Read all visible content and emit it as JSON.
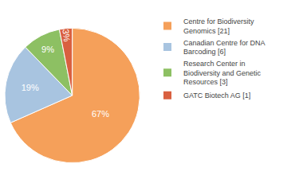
{
  "chart_data": {
    "type": "pie",
    "categories": [
      "Centre for Biodiversity\nGenomics [21]",
      "Canadian Centre for DNA\nBarcoding [6]",
      "Research Center in\nBiodiversity and Genetic\nResources [3]",
      "GATC Biotech AG [1]"
    ],
    "values": [
      67,
      19,
      9,
      3
    ],
    "value_labels": [
      "67%",
      "19%",
      "9%",
      "3%"
    ],
    "colors": [
      "#F5A05A",
      "#A8C4E0",
      "#8DC063",
      "#D96040"
    ],
    "data_labels": true,
    "legend": "right"
  }
}
